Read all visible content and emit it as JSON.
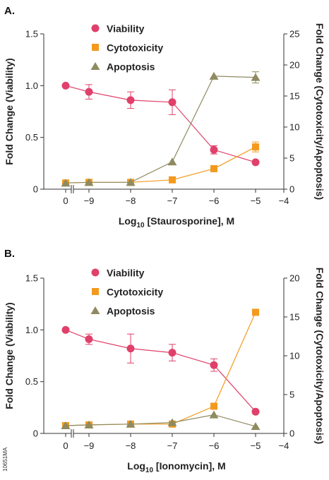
{
  "colors": {
    "viability": "#e0406a",
    "cytotoxicity": "#f39a1e",
    "apoptosis": "#8f8a60",
    "axis": "#333333",
    "error": "#e0406a"
  },
  "figure_code": "10651MA",
  "chart_data": [
    {
      "type": "line",
      "panel_label": "A.",
      "xlabel_prefix": "Log",
      "xlabel_sub": "10",
      "xlabel_suffix": " [Staurosporine], M",
      "ylabel_left": "Fold Change (Viability)",
      "ylabel_right": "Fold Change (Cytotoxicity/Apoptosis)",
      "x_ticks": [
        {
          "value": 0,
          "label": "0"
        },
        {
          "value": -9,
          "label": "−9"
        },
        {
          "value": -8,
          "label": "−8"
        },
        {
          "value": -7,
          "label": "−7"
        },
        {
          "value": -6,
          "label": "−6"
        },
        {
          "value": -5,
          "label": "−5"
        },
        {
          "value": -4,
          "label": "−4"
        }
      ],
      "axis_break_between": [
        0,
        -9
      ],
      "ylim_left": [
        0,
        1.5
      ],
      "yticks_left": [
        "0",
        "0.5",
        "1.0",
        "1.5"
      ],
      "ylim_right": [
        0,
        25
      ],
      "yticks_right": [
        "0",
        "5",
        "10",
        "15",
        "20",
        "25"
      ],
      "legend_position": "top-center",
      "series": [
        {
          "name": "Viability",
          "axis": "left",
          "marker": "circle",
          "color_key": "viability",
          "x": [
            0,
            -9,
            -8,
            -7,
            -6,
            -5
          ],
          "y": [
            1.0,
            0.94,
            0.86,
            0.84,
            0.38,
            0.26
          ],
          "err": [
            0.01,
            0.07,
            0.08,
            0.12,
            0.04,
            0.01
          ]
        },
        {
          "name": "Cytotoxicity",
          "axis": "right",
          "marker": "square",
          "color_key": "cytotoxicity",
          "x": [
            0,
            -9,
            -8,
            -7,
            -6,
            -5
          ],
          "y": [
            1.0,
            1.1,
            1.1,
            1.5,
            3.3,
            6.8
          ],
          "err": [
            0,
            0,
            0,
            0,
            0,
            0.8
          ]
        },
        {
          "name": "Apoptosis",
          "axis": "right",
          "marker": "triangle",
          "color_key": "apoptosis",
          "x": [
            0,
            -9,
            -8,
            -7,
            -6,
            -5
          ],
          "y": [
            1.0,
            1.1,
            1.1,
            4.4,
            18.2,
            18.0
          ],
          "err": [
            0,
            0,
            0,
            0,
            0,
            0.9
          ]
        }
      ]
    },
    {
      "type": "line",
      "panel_label": "B.",
      "xlabel_prefix": "Log",
      "xlabel_sub": "10",
      "xlabel_suffix": " [Ionomycin], M",
      "ylabel_left": "Fold Change (Viability)",
      "ylabel_right": "Fold Change (Cytotoxicity/Apoptosis)",
      "x_ticks": [
        {
          "value": 0,
          "label": "0"
        },
        {
          "value": -9,
          "label": "−9"
        },
        {
          "value": -8,
          "label": "−8"
        },
        {
          "value": -7,
          "label": "−7"
        },
        {
          "value": -6,
          "label": "−6"
        },
        {
          "value": -5,
          "label": "−5"
        },
        {
          "value": -4,
          "label": "−4"
        }
      ],
      "axis_break_between": [
        0,
        -9
      ],
      "ylim_left": [
        0,
        1.5
      ],
      "yticks_left": [
        "0",
        "0.5",
        "1.0",
        "1.5"
      ],
      "ylim_right": [
        0,
        20
      ],
      "yticks_right": [
        "0",
        "5",
        "10",
        "15",
        "20"
      ],
      "legend_position": "top-center",
      "series": [
        {
          "name": "Viability",
          "axis": "left",
          "marker": "circle",
          "color_key": "viability",
          "x": [
            0,
            -9,
            -8,
            -7,
            -6,
            -5
          ],
          "y": [
            1.0,
            0.91,
            0.82,
            0.78,
            0.66,
            0.21
          ],
          "err": [
            0.01,
            0.05,
            0.14,
            0.08,
            0.06,
            0.01
          ]
        },
        {
          "name": "Cytotoxicity",
          "axis": "right",
          "marker": "square",
          "color_key": "cytotoxicity",
          "x": [
            0,
            -9,
            -8,
            -7,
            -6,
            -5
          ],
          "y": [
            1.0,
            1.1,
            1.2,
            1.2,
            3.5,
            15.6
          ],
          "err": [
            0,
            0,
            0,
            0,
            0,
            0
          ]
        },
        {
          "name": "Apoptosis",
          "axis": "right",
          "marker": "triangle",
          "color_key": "apoptosis",
          "x": [
            0,
            -9,
            -8,
            -7,
            -6,
            -5
          ],
          "y": [
            1.0,
            1.1,
            1.2,
            1.4,
            2.4,
            0.9
          ],
          "err": [
            0,
            0,
            0,
            0,
            0,
            0
          ]
        }
      ]
    }
  ]
}
